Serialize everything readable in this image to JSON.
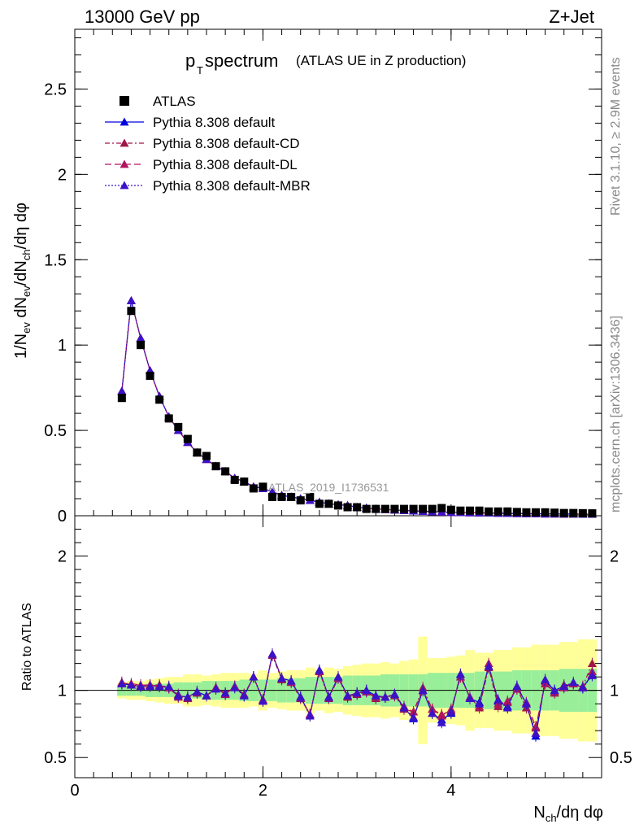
{
  "header": {
    "left": "13000 GeV pp",
    "right": "Z+Jet"
  },
  "side_text": {
    "rivet": "Rivet 3.1.10, ≥ 2.9M events",
    "mcplots": "mcplots.cern.ch [arXiv:1306.3436]"
  },
  "colors": {
    "data": "#000000",
    "default": "#0000dd",
    "cd": "#a0174a",
    "dl": "#b0155f",
    "mbr": "#3b12c8",
    "band_inner": "#99ee99",
    "band_outer": "#ffff99"
  },
  "chart_data": [
    {
      "type": "scatter",
      "title_main": "p",
      "title_sub": "T",
      "title_rest": " spectrum",
      "title_paren": "(ATLAS UE in Z production)",
      "ylabel": "1/N_ev dN_ev/dN_ch/dη dφ",
      "watermark": "ATLAS_2019_I1736531",
      "ylim": [
        0,
        2.85
      ],
      "yticks": [
        "0",
        "0.5",
        "1",
        "1.5",
        "2",
        "2.5"
      ],
      "legend": [
        {
          "label": "ATLAS",
          "style": "data"
        },
        {
          "label": "Pythia 8.308 default",
          "style": "default"
        },
        {
          "label": "Pythia 8.308 default-CD",
          "style": "cd"
        },
        {
          "label": "Pythia 8.308 default-DL",
          "style": "dl"
        },
        {
          "label": "Pythia 8.308 default-MBR",
          "style": "mbr"
        }
      ],
      "x": [
        0.5,
        0.6,
        0.7,
        0.8,
        0.9,
        1.0,
        1.1,
        1.2,
        1.3,
        1.4,
        1.5,
        1.6,
        1.7,
        1.8,
        1.9,
        2.0,
        2.1,
        2.2,
        2.3,
        2.4,
        2.5,
        2.6,
        2.7,
        2.8,
        2.9,
        3.0,
        3.1,
        3.2,
        3.3,
        3.4,
        3.5,
        3.6,
        3.7,
        3.8,
        3.9,
        4.0,
        4.1,
        4.2,
        4.3,
        4.4,
        4.5,
        4.6,
        4.7,
        4.8,
        4.9,
        5.0,
        5.1,
        5.2,
        5.3,
        5.4,
        5.5
      ],
      "series": [
        {
          "name": "ATLAS",
          "values": [
            0.69,
            1.2,
            1.0,
            0.82,
            0.68,
            0.57,
            0.52,
            0.45,
            0.37,
            0.35,
            0.29,
            0.26,
            0.21,
            0.2,
            0.16,
            0.17,
            0.11,
            0.11,
            0.11,
            0.09,
            0.11,
            0.07,
            0.07,
            0.06,
            0.05,
            0.05,
            0.04,
            0.04,
            0.04,
            0.04,
            0.04,
            0.04,
            0.04,
            0.04,
            0.045,
            0.035,
            0.03,
            0.03,
            0.03,
            0.025,
            0.025,
            0.025,
            0.022,
            0.02,
            0.02,
            0.02,
            0.018,
            0.016,
            0.016,
            0.015,
            0.014
          ]
        },
        {
          "name": "Pythia 8.308 default",
          "values": [
            0.73,
            1.26,
            1.04,
            0.85,
            0.7,
            0.58,
            0.5,
            0.43,
            0.37,
            0.33,
            0.29,
            0.26,
            0.22,
            0.2,
            0.17,
            0.16,
            0.14,
            0.12,
            0.11,
            0.1,
            0.09,
            0.08,
            0.07,
            0.065,
            0.06,
            0.05,
            0.045,
            0.04,
            0.037,
            0.034,
            0.031,
            0.028,
            0.026,
            0.024,
            0.022,
            0.02,
            0.019,
            0.018,
            0.017,
            0.016,
            0.015,
            0.014,
            0.013,
            0.012,
            0.012,
            0.011,
            0.011,
            0.01,
            0.01,
            0.009,
            0.009
          ]
        },
        {
          "name": "Pythia 8.308 default-CD",
          "values": [
            0.73,
            1.26,
            1.04,
            0.85,
            0.7,
            0.58,
            0.5,
            0.43,
            0.37,
            0.33,
            0.29,
            0.26,
            0.22,
            0.2,
            0.17,
            0.16,
            0.14,
            0.12,
            0.11,
            0.1,
            0.09,
            0.08,
            0.07,
            0.065,
            0.06,
            0.05,
            0.045,
            0.04,
            0.037,
            0.034,
            0.031,
            0.028,
            0.026,
            0.024,
            0.022,
            0.02,
            0.019,
            0.018,
            0.017,
            0.016,
            0.015,
            0.014,
            0.013,
            0.012,
            0.012,
            0.011,
            0.011,
            0.01,
            0.01,
            0.009,
            0.009
          ]
        },
        {
          "name": "Pythia 8.308 default-DL",
          "values": [
            0.73,
            1.26,
            1.04,
            0.85,
            0.7,
            0.58,
            0.5,
            0.43,
            0.37,
            0.33,
            0.29,
            0.26,
            0.22,
            0.2,
            0.17,
            0.16,
            0.14,
            0.12,
            0.11,
            0.1,
            0.09,
            0.08,
            0.07,
            0.065,
            0.06,
            0.05,
            0.045,
            0.04,
            0.037,
            0.034,
            0.031,
            0.028,
            0.026,
            0.024,
            0.022,
            0.02,
            0.019,
            0.018,
            0.017,
            0.016,
            0.015,
            0.014,
            0.013,
            0.012,
            0.012,
            0.011,
            0.011,
            0.01,
            0.01,
            0.009,
            0.009
          ]
        },
        {
          "name": "Pythia 8.308 default-MBR",
          "values": [
            0.73,
            1.26,
            1.04,
            0.85,
            0.7,
            0.58,
            0.5,
            0.43,
            0.37,
            0.33,
            0.29,
            0.26,
            0.22,
            0.2,
            0.17,
            0.16,
            0.14,
            0.12,
            0.11,
            0.1,
            0.09,
            0.08,
            0.07,
            0.065,
            0.06,
            0.05,
            0.045,
            0.04,
            0.037,
            0.034,
            0.031,
            0.028,
            0.026,
            0.024,
            0.022,
            0.02,
            0.019,
            0.018,
            0.017,
            0.016,
            0.015,
            0.014,
            0.013,
            0.012,
            0.012,
            0.011,
            0.011,
            0.01,
            0.01,
            0.009,
            0.009
          ]
        }
      ]
    },
    {
      "type": "scatter",
      "ylabel": "Ratio to ATLAS",
      "xlabel": "N_ch/dη dφ",
      "xlim": [
        0,
        5.6
      ],
      "xticks": [
        "0",
        "2",
        "4"
      ],
      "ylim": [
        0.35,
        2.3
      ],
      "yticks": [
        "0.5",
        "1",
        "2"
      ],
      "x": [
        0.5,
        0.6,
        0.7,
        0.8,
        0.9,
        1.0,
        1.1,
        1.2,
        1.3,
        1.4,
        1.5,
        1.6,
        1.7,
        1.8,
        1.9,
        2.0,
        2.1,
        2.2,
        2.3,
        2.4,
        2.5,
        2.6,
        2.7,
        2.8,
        2.9,
        3.0,
        3.1,
        3.2,
        3.3,
        3.4,
        3.5,
        3.6,
        3.7,
        3.8,
        3.9,
        4.0,
        4.1,
        4.2,
        4.3,
        4.4,
        4.5,
        4.6,
        4.7,
        4.8,
        4.9,
        5.0,
        5.1,
        5.2,
        5.3,
        5.4,
        5.5
      ],
      "band_inner": [
        0.04,
        0.04,
        0.04,
        0.05,
        0.05,
        0.05,
        0.06,
        0.06,
        0.06,
        0.07,
        0.07,
        0.07,
        0.07,
        0.08,
        0.08,
        0.08,
        0.08,
        0.09,
        0.09,
        0.09,
        0.1,
        0.1,
        0.1,
        0.1,
        0.11,
        0.11,
        0.11,
        0.11,
        0.12,
        0.12,
        0.12,
        0.12,
        0.12,
        0.13,
        0.13,
        0.13,
        0.13,
        0.13,
        0.14,
        0.14,
        0.14,
        0.14,
        0.15,
        0.15,
        0.15,
        0.15,
        0.15,
        0.16,
        0.16,
        0.16,
        0.16
      ],
      "band_outer": [
        0.06,
        0.07,
        0.07,
        0.08,
        0.09,
        0.1,
        0.1,
        0.12,
        0.12,
        0.11,
        0.12,
        0.13,
        0.13,
        0.13,
        0.12,
        0.15,
        0.13,
        0.14,
        0.15,
        0.15,
        0.17,
        0.15,
        0.17,
        0.16,
        0.18,
        0.19,
        0.2,
        0.2,
        0.21,
        0.2,
        0.22,
        0.23,
        0.4,
        0.24,
        0.24,
        0.25,
        0.26,
        0.3,
        0.28,
        0.28,
        0.3,
        0.3,
        0.32,
        0.32,
        0.34,
        0.34,
        0.34,
        0.36,
        0.36,
        0.38,
        0.38
      ],
      "series": [
        {
          "name": "Pythia 8.308 default",
          "values": [
            1.05,
            1.04,
            1.03,
            1.04,
            1.03,
            1.02,
            0.96,
            0.95,
            0.99,
            0.96,
            1.02,
            0.97,
            1.03,
            0.96,
            1.1,
            0.93,
            1.27,
            1.09,
            1.07,
            0.95,
            0.82,
            1.15,
            0.95,
            1.1,
            0.96,
            0.98,
            1.0,
            0.96,
            0.95,
            0.97,
            0.87,
            0.79,
            1.0,
            0.83,
            0.78,
            0.83,
            1.12,
            0.94,
            0.91,
            1.18,
            0.92,
            0.88,
            1.03,
            0.9,
            0.66,
            1.07,
            1.0,
            1.03,
            1.05,
            1.02,
            1.12
          ]
        },
        {
          "name": "Pythia 8.308 default-CD",
          "values": [
            1.06,
            1.04,
            1.03,
            1.04,
            1.04,
            1.02,
            0.97,
            0.94,
            0.98,
            0.96,
            1.02,
            0.98,
            1.03,
            0.97,
            1.1,
            0.92,
            1.26,
            1.08,
            1.06,
            0.94,
            0.82,
            1.14,
            0.94,
            1.09,
            0.95,
            0.97,
            0.99,
            0.94,
            0.95,
            0.96,
            0.86,
            0.84,
            1.02,
            0.86,
            0.82,
            0.85,
            1.1,
            0.95,
            0.87,
            1.17,
            0.88,
            0.91,
            1.01,
            0.87,
            0.72,
            1.05,
            0.98,
            1.04,
            1.05,
            1.03,
            1.2
          ]
        },
        {
          "name": "Pythia 8.308 default-DL",
          "values": [
            1.05,
            1.05,
            1.04,
            1.04,
            1.03,
            1.02,
            0.95,
            0.95,
            0.99,
            0.96,
            1.02,
            0.97,
            1.03,
            0.97,
            1.1,
            0.93,
            1.27,
            1.09,
            1.06,
            0.95,
            0.82,
            1.14,
            0.95,
            1.09,
            0.96,
            0.98,
            0.99,
            0.95,
            0.95,
            0.97,
            0.88,
            0.84,
            1.0,
            0.86,
            0.81,
            0.86,
            1.1,
            0.95,
            0.88,
            1.2,
            0.9,
            0.92,
            1.01,
            0.91,
            0.73,
            1.05,
            0.99,
            1.02,
            1.05,
            1.02,
            1.14
          ]
        },
        {
          "name": "Pythia 8.308 default-MBR",
          "values": [
            1.05,
            1.04,
            1.03,
            1.03,
            1.03,
            1.03,
            0.96,
            0.95,
            0.99,
            0.96,
            1.01,
            0.98,
            1.02,
            0.96,
            1.1,
            0.92,
            1.27,
            1.09,
            1.07,
            0.95,
            0.81,
            1.15,
            0.95,
            1.1,
            0.96,
            0.98,
            1.0,
            0.96,
            0.95,
            0.97,
            0.87,
            0.8,
            1.0,
            0.83,
            0.76,
            0.84,
            1.12,
            0.94,
            0.9,
            1.18,
            0.93,
            0.87,
            1.03,
            0.9,
            0.68,
            1.08,
            1.0,
            1.03,
            1.06,
            1.02,
            1.11
          ]
        }
      ]
    }
  ]
}
